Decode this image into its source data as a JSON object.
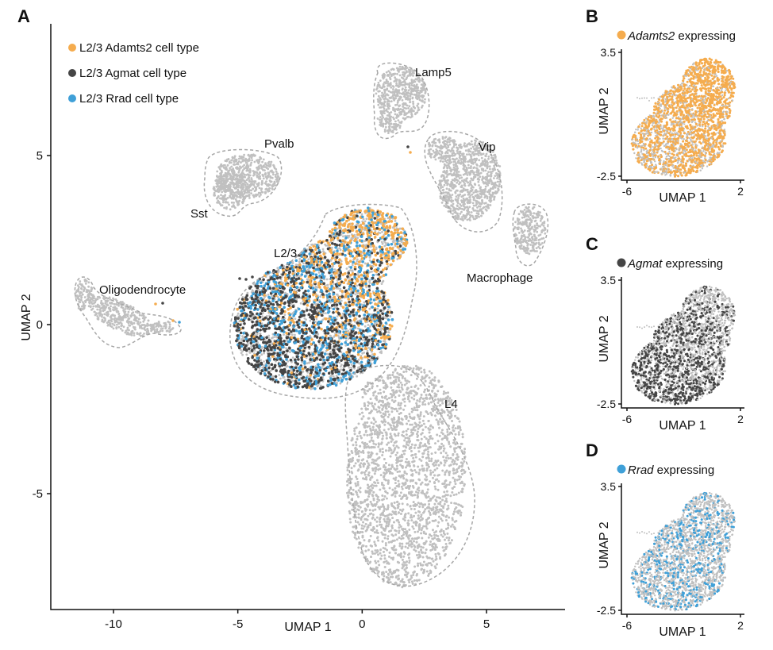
{
  "chart_data": [
    {
      "panel": "A",
      "type": "scatter",
      "xlabel": "UMAP 1",
      "ylabel": "UMAP 2",
      "xlim": [
        -12.5,
        8.2
      ],
      "ylim": [
        -8.5,
        7.8
      ],
      "xticks": [
        -10,
        -5,
        0,
        5
      ],
      "yticks": [
        5,
        0,
        -5
      ],
      "legend_position": "top-left",
      "legend": [
        {
          "label": "L2/3 Adamts2 cell type",
          "color": "#f5ac4e"
        },
        {
          "label": "L2/3 Agmat cell type",
          "color": "#454545"
        },
        {
          "label": "L2/3 Rrad cell type",
          "color": "#3fa0d8"
        }
      ],
      "background_color": "#c0c0c0",
      "clusters": [
        {
          "label": "Lamp5",
          "center": [
            1.0,
            6.9
          ]
        },
        {
          "label": "Pvalb",
          "center": [
            -5.0,
            4.5
          ]
        },
        {
          "label": "Sst",
          "center": [
            -5.3,
            4.2
          ]
        },
        {
          "label": "Vip",
          "center": [
            3.8,
            4.4
          ]
        },
        {
          "label": "Macrophage",
          "center": [
            6.4,
            2.8
          ]
        },
        {
          "label": "L2/3",
          "center": [
            -1.5,
            0.3
          ]
        },
        {
          "label": "Oligodendrocyte",
          "center": [
            -10.0,
            0.3
          ]
        },
        {
          "label": "L4",
          "center": [
            2.0,
            -3.8
          ]
        }
      ]
    },
    {
      "panel": "B",
      "type": "scatter",
      "title": "Adamts2",
      "title_suffix": "expressing",
      "color": "#f5ac4e",
      "xlabel": "UMAP 1",
      "ylabel": "UMAP 2",
      "xticks": [
        -6,
        2
      ],
      "yticks": [
        3.5,
        -2.5
      ]
    },
    {
      "panel": "C",
      "type": "scatter",
      "title": "Agmat",
      "title_suffix": "expressing",
      "color": "#454545",
      "xlabel": "UMAP 1",
      "ylabel": "UMAP 2",
      "xticks": [
        -6,
        2
      ],
      "yticks": [
        3.5,
        -2.5
      ]
    },
    {
      "panel": "D",
      "type": "scatter",
      "title": "Rrad",
      "title_suffix": "expressing",
      "color": "#3fa0d8",
      "xlabel": "UMAP 1",
      "ylabel": "UMAP 2",
      "xticks": [
        -6,
        2
      ],
      "yticks": [
        3.5,
        -2.5
      ]
    }
  ]
}
